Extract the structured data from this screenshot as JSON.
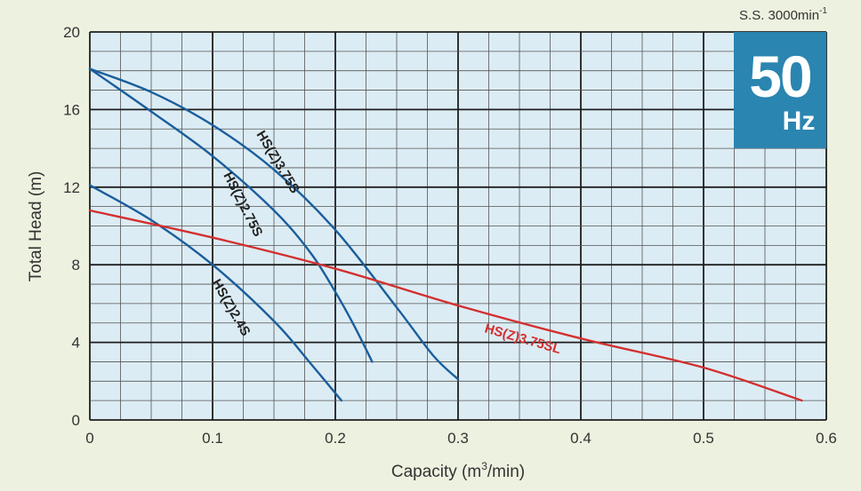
{
  "speed_label": {
    "prefix": "S.S. 3000min",
    "exp": "-1"
  },
  "badge": {
    "value": "50",
    "unit": "Hz"
  },
  "chart_data": {
    "type": "line",
    "xlabel": {
      "prefix": "Capacity (m",
      "sup": "3",
      "suffix": "/min)"
    },
    "ylabel": "Total Head (m)",
    "xlim": [
      0,
      0.6
    ],
    "ylim": [
      0,
      20
    ],
    "x_ticks": [
      0,
      0.1,
      0.2,
      0.3,
      0.4,
      0.5,
      0.6
    ],
    "x_tick_labels": [
      "0",
      "0.1",
      "0.2",
      "0.3",
      "0.4",
      "0.5",
      "0.6"
    ],
    "y_ticks": [
      0,
      4,
      8,
      12,
      16,
      20
    ],
    "y_tick_labels": [
      "0",
      "4",
      "8",
      "12",
      "16",
      "20"
    ],
    "x_minor_step": 0.025,
    "y_minor_step": 1,
    "x_major_step": 0.1,
    "y_major_step": 4,
    "grid": true,
    "series": [
      {
        "name": "HS(Z)3.75S",
        "color": "#1a5e9c",
        "x": [
          0,
          0.05,
          0.1,
          0.15,
          0.2,
          0.25,
          0.28,
          0.3
        ],
        "y": [
          18.1,
          16.9,
          15.2,
          12.9,
          9.8,
          5.8,
          3.3,
          2.1
        ]
      },
      {
        "name": "HS(Z)2.75S",
        "color": "#1a5e9c",
        "x": [
          0,
          0.05,
          0.1,
          0.15,
          0.18,
          0.2,
          0.215,
          0.23
        ],
        "y": [
          18.1,
          15.9,
          13.6,
          10.8,
          8.6,
          6.6,
          4.9,
          3.0
        ]
      },
      {
        "name": "HS(Z)2.4S",
        "color": "#1a5e9c",
        "x": [
          0,
          0.05,
          0.1,
          0.15,
          0.18,
          0.205
        ],
        "y": [
          12.1,
          10.3,
          8.0,
          5.1,
          2.9,
          1.0
        ]
      },
      {
        "name": "HS(Z)3.75SL",
        "color": "#d32f2f",
        "x": [
          0,
          0.1,
          0.2,
          0.3,
          0.4,
          0.5,
          0.58
        ],
        "y": [
          10.8,
          9.4,
          7.8,
          5.9,
          4.2,
          2.7,
          1.0
        ]
      }
    ]
  }
}
